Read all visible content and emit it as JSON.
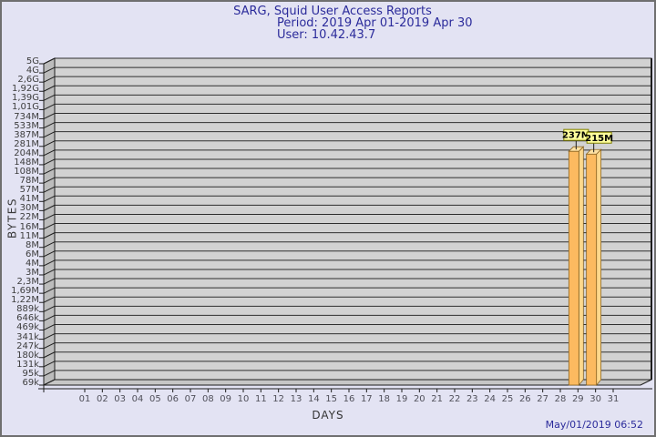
{
  "chart_data": {
    "type": "bar",
    "title": "SARG, Squid User Access Reports",
    "period": "Period: 2019 Apr 01-2019 Apr 30",
    "user": "User: 10.42.43.7",
    "xlabel": "DAYS",
    "ylabel": "BYTES",
    "y_scale": "log",
    "y_axis_top_bytes": 5000000000,
    "y_axis_bottom_bytes": 69000,
    "y_ticks": [
      "5G",
      "4G",
      "2,6G",
      "1,92G",
      "1,39G",
      "1,01G",
      "734M",
      "533M",
      "387M",
      "281M",
      "204M",
      "148M",
      "108M",
      "78M",
      "57M",
      "41M",
      "30M",
      "22M",
      "16M",
      "11M",
      "8M",
      "6M",
      "4M",
      "3M",
      "2,3M",
      "1,69M",
      "1,22M",
      "889k",
      "646k",
      "469k",
      "341k",
      "247k",
      "180k",
      "131k",
      "95k",
      "69k"
    ],
    "x_ticks": [
      "01",
      "02",
      "03",
      "04",
      "05",
      "06",
      "07",
      "08",
      "09",
      "10",
      "11",
      "12",
      "13",
      "14",
      "15",
      "16",
      "17",
      "18",
      "19",
      "20",
      "21",
      "22",
      "23",
      "24",
      "25",
      "26",
      "27",
      "28",
      "29",
      "30",
      "31"
    ],
    "values": [
      0,
      0,
      0,
      0,
      0,
      0,
      0,
      0,
      0,
      0,
      0,
      0,
      0,
      0,
      0,
      0,
      0,
      0,
      0,
      0,
      0,
      0,
      0,
      0,
      0,
      0,
      0,
      0,
      237000000,
      215000000,
      0
    ],
    "bars": [
      {
        "day": 29,
        "label": "237M",
        "value_bytes": 237000000
      },
      {
        "day": 30,
        "label": "215M",
        "value_bytes": 215000000
      }
    ],
    "legend": null,
    "grid": "horizontal",
    "timestamp": "May/01/2019 06:52",
    "colors": {
      "background": "#e3e3f3",
      "title_text": "#2b2b9b",
      "plot_bg": "#d2d2d2",
      "wall": "#bcbcbc",
      "floor": "#c6c6c6",
      "grid_line": "#2f2f2f",
      "frame_line": "#1e1e1e",
      "bar_front": "#fcba60",
      "bar_side": "#fdd88c",
      "bar_top": "#ffe2a4",
      "bar_edge": "#8a6524",
      "value_box_bg": "#ffff9c",
      "value_box_border": "#7f7f00",
      "value_box_text": "#000000"
    }
  }
}
